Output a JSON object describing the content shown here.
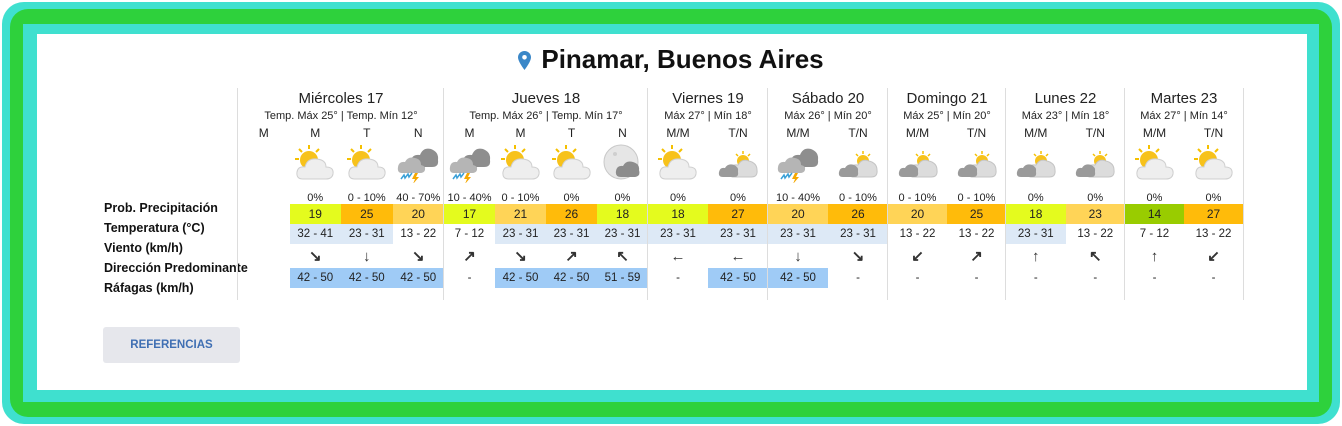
{
  "location": {
    "title": "Pinamar, Buenos Aires",
    "icon": "map-pin-icon",
    "pin_color": "#3a87c8"
  },
  "row_labels": [
    "Prob. Precipitación",
    "Temperatura (°C)",
    "Viento (km/h)",
    "Dirección Predominante",
    "Ráfagas (km/h)"
  ],
  "references_button": "REFERENCIAS",
  "colors": {
    "temp_low": "#e4fb1e",
    "temp_mid": "#ffd457",
    "temp_high": "#ffbb0a",
    "temp_cool": "#99cc00",
    "wind_shade": "#dde9f6",
    "gust_shade": "#9fcbf6",
    "border_teal": "#3fe0cf",
    "border_green": "#2ed13c"
  },
  "days": [
    {
      "name": "Miércoles 17",
      "temps": "Temp. Máx 25° | Temp. Mín 12°",
      "slots": [
        {
          "period": "M",
          "icon": "",
          "precip": "",
          "temp": "",
          "level": "",
          "wind": "",
          "dir": "",
          "gust": ""
        },
        {
          "period": "M",
          "icon": "sun-cloud",
          "precip": "0%",
          "temp": "19",
          "level": "low",
          "wind": "32 - 41",
          "dir": "↘",
          "gust": "42 - 50"
        },
        {
          "period": "T",
          "icon": "sun-cloud",
          "precip": "0 - 10%",
          "temp": "25",
          "level": "high",
          "wind": "23 - 31",
          "dir": "↓",
          "gust": "42 - 50"
        },
        {
          "period": "N",
          "icon": "storm",
          "precip": "40 - 70%",
          "temp": "20",
          "level": "mid",
          "wind": "13 - 22",
          "dir": "↘",
          "gust": "42 - 50"
        }
      ]
    },
    {
      "name": "Jueves 18",
      "temps": "Temp. Máx 26° | Temp. Mín 17°",
      "slots": [
        {
          "period": "M",
          "icon": "storm",
          "precip": "10 - 40%",
          "temp": "17",
          "level": "low",
          "wind": "7 - 12",
          "dir": "↗",
          "gust": "-"
        },
        {
          "period": "M",
          "icon": "sun-cloud",
          "precip": "0 - 10%",
          "temp": "21",
          "level": "mid",
          "wind": "23 - 31",
          "dir": "↘",
          "gust": "42 - 50"
        },
        {
          "period": "T",
          "icon": "sun-cloud",
          "precip": "0%",
          "temp": "26",
          "level": "high",
          "wind": "23 - 31",
          "dir": "↗",
          "gust": "42 - 50"
        },
        {
          "period": "N",
          "icon": "moon-cloud",
          "precip": "0%",
          "temp": "18",
          "level": "low",
          "wind": "23 - 31",
          "dir": "↖",
          "gust": "51 - 59"
        }
      ]
    },
    {
      "name": "Viernes 19",
      "temps": "Máx 27° | Mín 18°",
      "slots": [
        {
          "period": "M/M",
          "icon": "sun-cloud",
          "precip": "0%",
          "temp": "18",
          "level": "low",
          "wind": "23 - 31",
          "dir": "←",
          "gust": "-"
        },
        {
          "period": "T/N",
          "icon": "cloudy-sun",
          "precip": "0%",
          "temp": "27",
          "level": "high",
          "wind": "23 - 31",
          "dir": "←",
          "gust": "42 - 50"
        }
      ]
    },
    {
      "name": "Sábado 20",
      "temps": "Máx 26° | Mín 20°",
      "slots": [
        {
          "period": "M/M",
          "icon": "storm",
          "precip": "10 - 40%",
          "temp": "20",
          "level": "mid",
          "wind": "23 - 31",
          "dir": "↓",
          "gust": "42 - 50"
        },
        {
          "period": "T/N",
          "icon": "cloudy-sun",
          "precip": "0 - 10%",
          "temp": "26",
          "level": "high",
          "wind": "23 - 31",
          "dir": "↘",
          "gust": "-"
        }
      ]
    },
    {
      "name": "Domingo 21",
      "temps": "Máx 25° | Mín 20°",
      "slots": [
        {
          "period": "M/M",
          "icon": "cloudy-sun",
          "precip": "0 - 10%",
          "temp": "20",
          "level": "mid",
          "wind": "13 - 22",
          "dir": "↙",
          "gust": "-"
        },
        {
          "period": "T/N",
          "icon": "cloudy-sun",
          "precip": "0 - 10%",
          "temp": "25",
          "level": "high",
          "wind": "13 - 22",
          "dir": "↗",
          "gust": "-"
        }
      ]
    },
    {
      "name": "Lunes 22",
      "temps": "Máx 23° | Mín 18°",
      "slots": [
        {
          "period": "M/M",
          "icon": "cloudy-sun",
          "precip": "0%",
          "temp": "18",
          "level": "low",
          "wind": "23 - 31",
          "dir": "↑",
          "gust": "-"
        },
        {
          "period": "T/N",
          "icon": "cloudy-sun",
          "precip": "0%",
          "temp": "23",
          "level": "mid",
          "wind": "13 - 22",
          "dir": "↖",
          "gust": "-"
        }
      ]
    },
    {
      "name": "Martes 23",
      "temps": "Máx 27° | Mín 14°",
      "slots": [
        {
          "period": "M/M",
          "icon": "sun-cloud",
          "precip": "0%",
          "temp": "14",
          "level": "cool",
          "wind": "7 - 12",
          "dir": "↑",
          "gust": "-"
        },
        {
          "period": "T/N",
          "icon": "sun-cloud",
          "precip": "0%",
          "temp": "27",
          "level": "high",
          "wind": "13 - 22",
          "dir": "↙",
          "gust": "-"
        }
      ]
    }
  ]
}
